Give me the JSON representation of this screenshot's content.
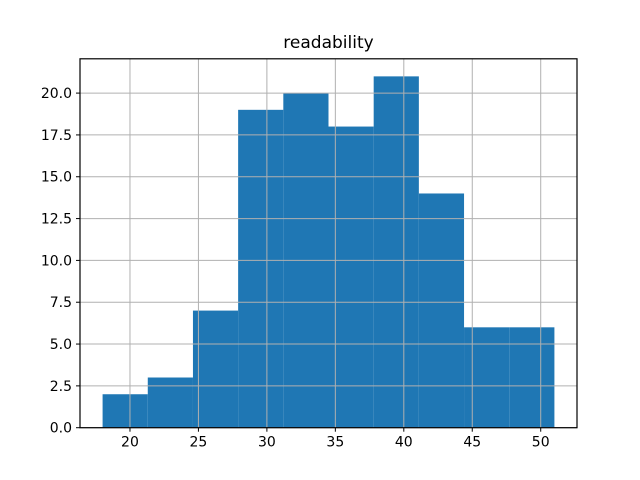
{
  "chart_data": {
    "type": "bar",
    "subtype": "histogram",
    "title": "readability",
    "xlabel": "",
    "ylabel": "",
    "bin_edges": [
      18.0,
      21.3,
      24.6,
      27.9,
      31.2,
      34.5,
      37.8,
      41.1,
      44.4,
      47.7,
      51.0
    ],
    "values": [
      2,
      3,
      7,
      19,
      20,
      18,
      21,
      14,
      6,
      6
    ],
    "xlim": [
      16.35,
      52.65
    ],
    "ylim": [
      0,
      22.05
    ],
    "xticks": [
      20,
      25,
      30,
      35,
      40,
      45,
      50
    ],
    "xtick_labels": [
      "20",
      "25",
      "30",
      "35",
      "40",
      "45",
      "50"
    ],
    "yticks": [
      0.0,
      2.5,
      5.0,
      7.5,
      10.0,
      12.5,
      15.0,
      17.5,
      20.0
    ],
    "ytick_labels": [
      "0.0",
      "2.5",
      "5.0",
      "7.5",
      "10.0",
      "12.5",
      "15.0",
      "17.5",
      "20.0"
    ],
    "grid": "on",
    "grid_above_bars": true,
    "legend": "none",
    "colors": {
      "bar": "#1f77b4",
      "grid": "#b0b0b0",
      "spine": "#000000",
      "background": "#ffffff",
      "text": "#000000"
    }
  }
}
